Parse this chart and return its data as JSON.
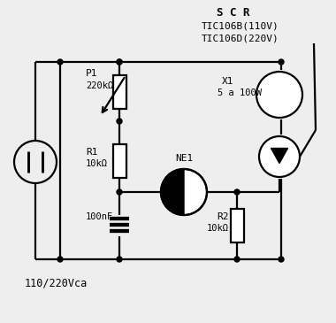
{
  "bg_color": "#eeeeee",
  "line_color": "#000000",
  "label_scr": "S C R",
  "label_scr2": "TIC106B(110V)",
  "label_scr3": "TIC106D(220V)",
  "label_p1": "P1",
  "label_p1v": "220kΩ",
  "label_r1": "R1",
  "label_r1v": "10kΩ",
  "label_cap": "100nF",
  "label_ne1": "NE1",
  "label_x1": "X1",
  "label_x1v": "5 a 100W",
  "label_r2": "R2",
  "label_r2v": "10kΩ",
  "label_voltage": "110/220Vca"
}
